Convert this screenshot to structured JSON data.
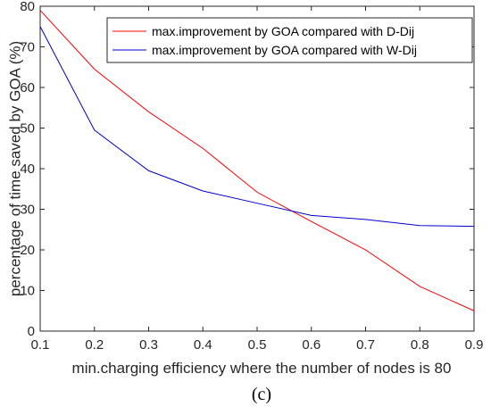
{
  "chart_data": {
    "type": "line",
    "title": "",
    "xlabel": "min.charging efficiency where the number of nodes is 80",
    "ylabel": "percentage of time saved by GOA (%)",
    "caption": "(c)",
    "x": [
      0.1,
      0.2,
      0.3,
      0.4,
      0.5,
      0.6,
      0.7,
      0.8,
      0.9
    ],
    "xlim": [
      0.1,
      0.9
    ],
    "ylim": [
      0,
      80
    ],
    "xticks": [
      "0.1",
      "0.2",
      "0.3",
      "0.4",
      "0.5",
      "0.6",
      "0.7",
      "0.8",
      "0.9"
    ],
    "yticks": [
      "0",
      "10",
      "20",
      "30",
      "40",
      "50",
      "60",
      "70",
      "80"
    ],
    "xtick_values": [
      0.1,
      0.2,
      0.3,
      0.4,
      0.5,
      0.6,
      0.7,
      0.8,
      0.9
    ],
    "ytick_values": [
      0,
      10,
      20,
      30,
      40,
      50,
      60,
      70,
      80
    ],
    "grid": false,
    "legend_position": "top-right",
    "series": [
      {
        "name": "max.improvement by GOA compared with D-Dij",
        "color": "#ff0000",
        "values": [
          79,
          64.5,
          54,
          45,
          34.2,
          27,
          20,
          11,
          5
        ]
      },
      {
        "name": "max.improvement by GOA compared with W-Dij",
        "color": "#0000cc",
        "values": [
          75,
          49.5,
          39.5,
          34.5,
          31.5,
          28.5,
          27.5,
          26,
          25.8
        ]
      }
    ]
  }
}
